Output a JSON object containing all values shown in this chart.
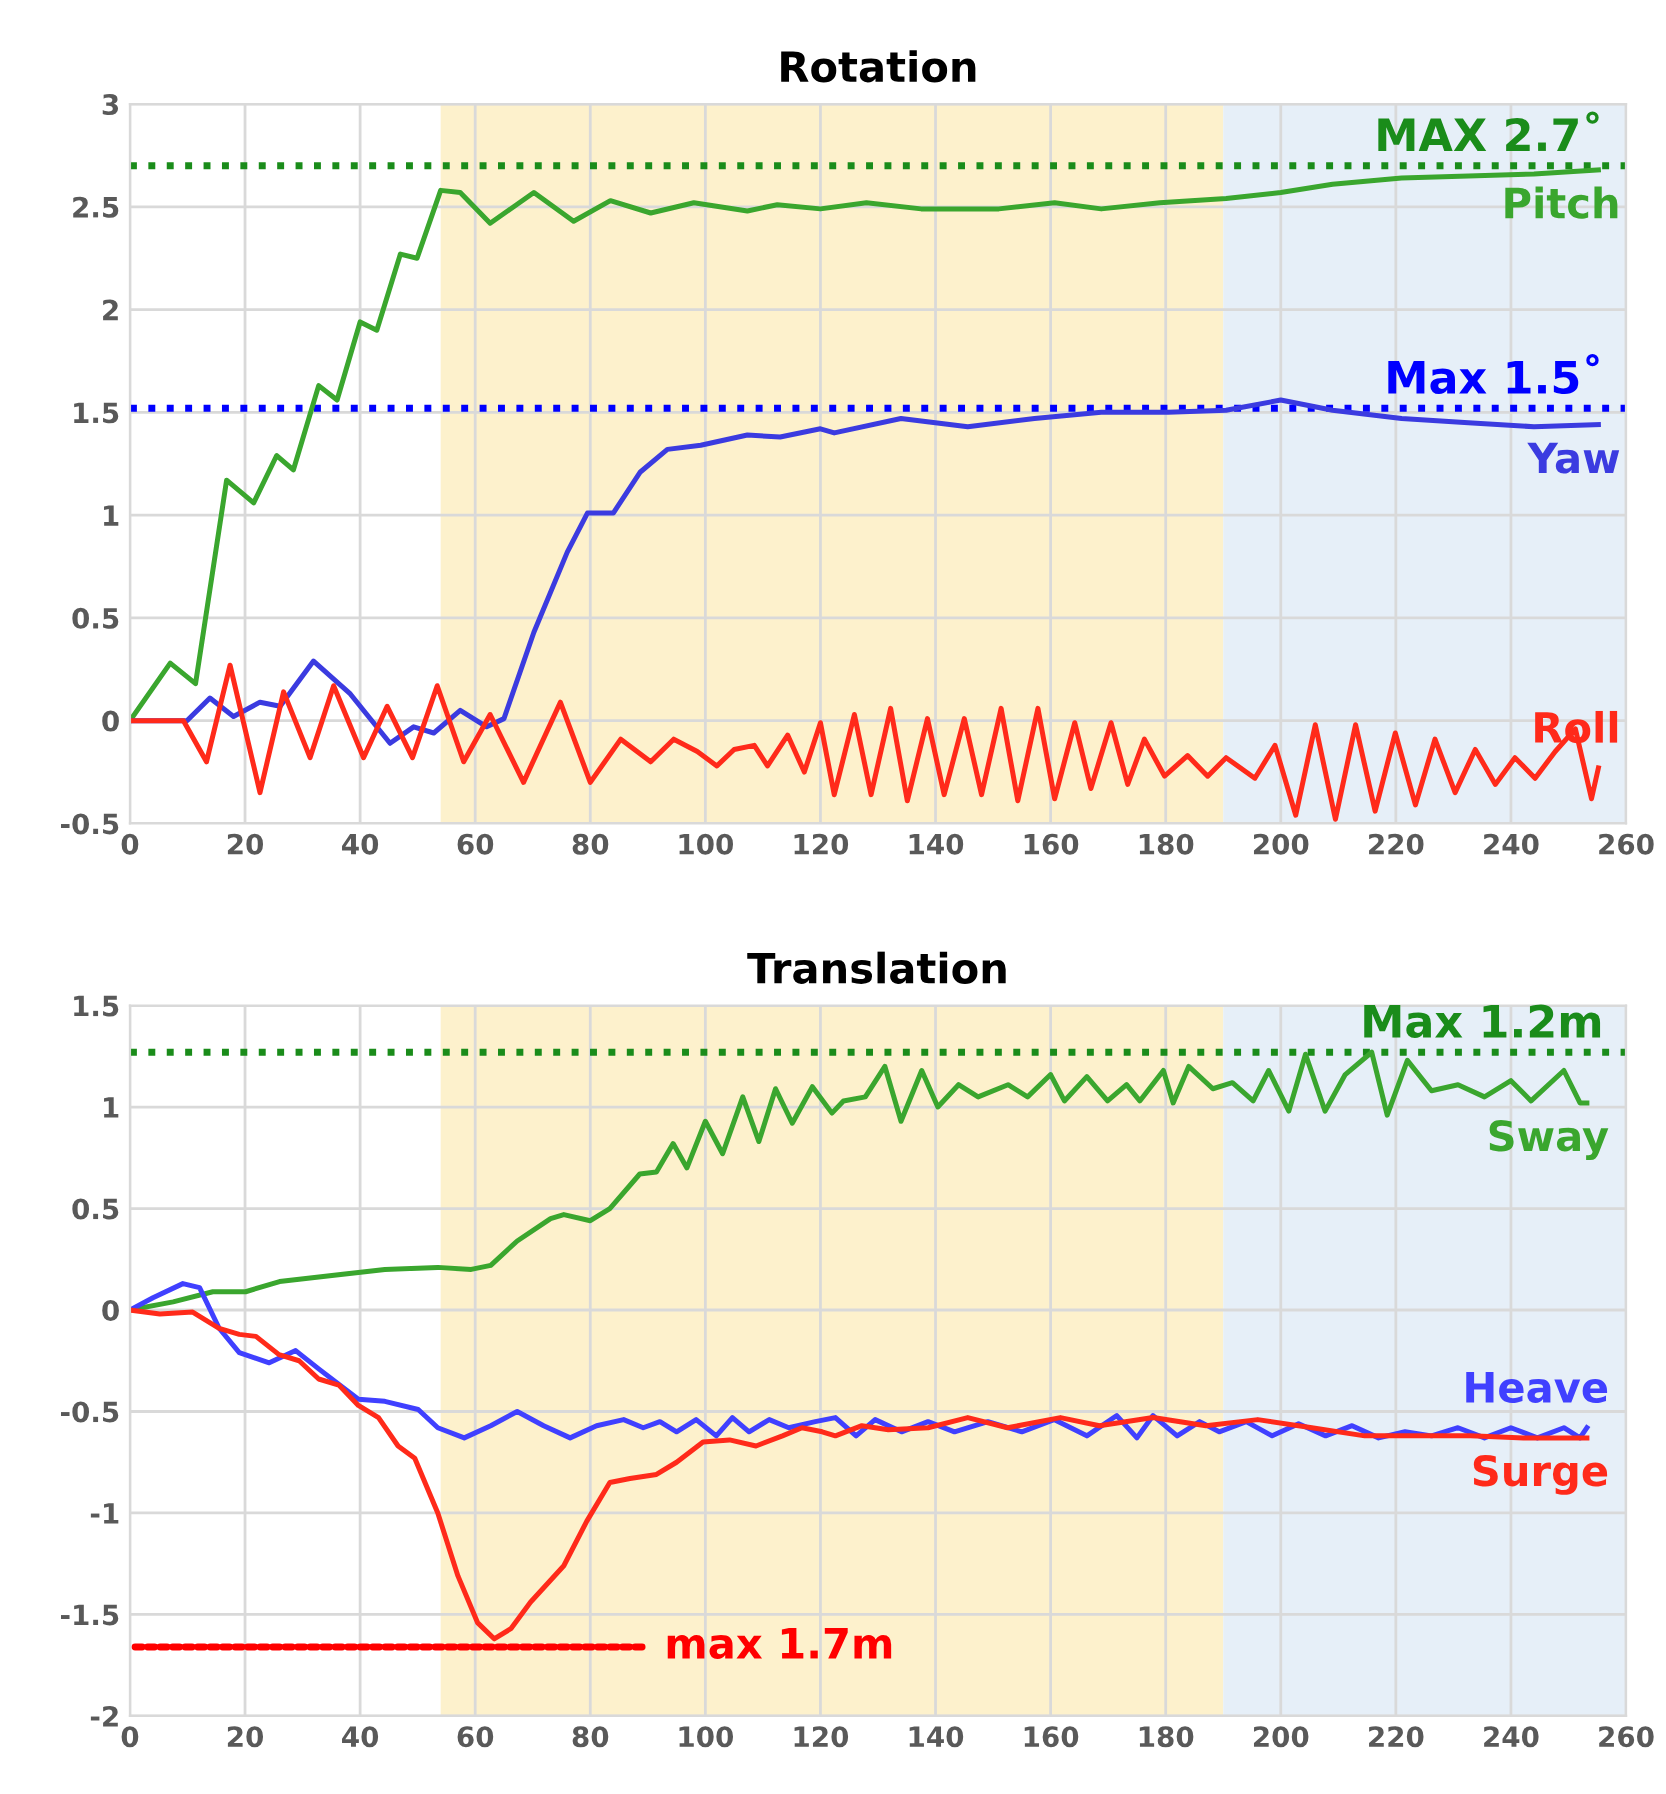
{
  "chart_data": [
    {
      "type": "line",
      "title": "Rotation",
      "xlim": [
        0,
        260
      ],
      "xticks": [
        0,
        20,
        40,
        60,
        80,
        100,
        120,
        140,
        160,
        180,
        200,
        220,
        240,
        260
      ],
      "ylim": [
        -0.5,
        3
      ],
      "yticks": [
        -0.5,
        0,
        0.5,
        1,
        1.5,
        2,
        2.5,
        3
      ],
      "grid": true,
      "bands": [
        {
          "axis": "x",
          "from": 54,
          "to": 190,
          "color": "#fdf1cc"
        },
        {
          "axis": "x",
          "from": 190,
          "to": 260,
          "color": "#e6eff8"
        }
      ],
      "ref_lines": [
        {
          "axis": "y",
          "value": 2.7,
          "label": "MAX 2.7˚",
          "color": "#1a8c1a",
          "line_style": "dotted"
        },
        {
          "axis": "y",
          "value": 1.52,
          "label": "Max 1.5˚",
          "color": "#0000ff",
          "line_style": "dotted"
        }
      ],
      "series": [
        {
          "name": "Pitch",
          "color": "#3aa62e",
          "x": [
            0,
            7,
            11.4,
            16.8,
            21.5,
            25.5,
            28.4,
            32.8,
            36,
            40,
            42.9,
            47,
            49.9,
            54,
            57.4,
            62.6,
            70.2,
            77.1,
            83.5,
            90.5,
            98,
            107.3,
            112.5,
            120,
            128,
            137.5,
            151,
            160.7,
            168.8,
            179,
            190.5,
            200,
            209,
            221,
            232.6,
            244,
            255.2
          ],
          "values": [
            0,
            0.28,
            0.18,
            1.17,
            1.06,
            1.29,
            1.22,
            1.63,
            1.56,
            1.94,
            1.9,
            2.27,
            2.25,
            2.58,
            2.57,
            2.42,
            2.57,
            2.43,
            2.53,
            2.47,
            2.52,
            2.48,
            2.51,
            2.49,
            2.52,
            2.49,
            2.49,
            2.52,
            2.49,
            2.52,
            2.54,
            2.57,
            2.61,
            2.64,
            2.65,
            2.66,
            2.68
          ]
        },
        {
          "name": "Yaw",
          "color": "#3b3be0",
          "x": [
            0,
            9.9,
            13.9,
            18,
            22.6,
            26.1,
            31.9,
            38.3,
            45.2,
            49.3,
            52.8,
            57.4,
            62,
            65,
            70.2,
            76,
            79.5,
            84,
            88.7,
            93.4,
            99.2,
            107.3,
            113,
            120,
            122.4,
            134,
            145.6,
            157.2,
            168.8,
            180.4,
            190.5,
            200,
            209,
            221,
            232.6,
            244,
            255.2
          ],
          "values": [
            0,
            0,
            0.11,
            0.02,
            0.09,
            0.07,
            0.29,
            0.13,
            -0.11,
            -0.03,
            -0.06,
            0.05,
            -0.03,
            0.01,
            0.43,
            0.82,
            1.01,
            1.01,
            1.21,
            1.32,
            1.34,
            1.39,
            1.38,
            1.42,
            1.4,
            1.47,
            1.43,
            1.47,
            1.5,
            1.5,
            1.51,
            1.56,
            1.51,
            1.47,
            1.45,
            1.43,
            1.44
          ]
        },
        {
          "name": "Roll",
          "color": "#ff2a1a",
          "x": [
            0,
            9.3,
            13.3,
            17.4,
            22.6,
            26.7,
            31.3,
            35.4,
            40.6,
            44.7,
            49.1,
            53.4,
            58,
            62.6,
            68.4,
            74.8,
            80,
            85.3,
            90.5,
            94.5,
            98.6,
            102,
            105,
            108.5,
            110.8,
            114.3,
            117.2,
            120,
            122.4,
            125.9,
            128.8,
            132.2,
            135.1,
            138.6,
            141.5,
            145,
            148,
            151.4,
            154.3,
            157.8,
            160.7,
            164.2,
            167,
            170.5,
            173.4,
            176.3,
            179.8,
            183.8,
            187.3,
            190.5,
            195.5,
            199,
            202.6,
            206,
            209.5,
            213,
            216.4,
            219.9,
            223.4,
            226.8,
            230.3,
            233.8,
            237.3,
            240.7,
            244.2,
            247.7,
            251.2,
            254,
            255.2
          ],
          "values": [
            0,
            0,
            -0.2,
            0.27,
            -0.35,
            0.14,
            -0.18,
            0.17,
            -0.18,
            0.07,
            -0.18,
            0.17,
            -0.2,
            0.03,
            -0.3,
            0.09,
            -0.3,
            -0.09,
            -0.2,
            -0.09,
            -0.15,
            -0.22,
            -0.14,
            -0.12,
            -0.22,
            -0.07,
            -0.25,
            -0.01,
            -0.36,
            0.03,
            -0.36,
            0.06,
            -0.39,
            0.01,
            -0.36,
            0.01,
            -0.36,
            0.06,
            -0.39,
            0.06,
            -0.38,
            -0.01,
            -0.33,
            -0.01,
            -0.31,
            -0.09,
            -0.27,
            -0.17,
            -0.27,
            -0.18,
            -0.28,
            -0.12,
            -0.46,
            -0.02,
            -0.48,
            -0.02,
            -0.44,
            -0.06,
            -0.41,
            -0.09,
            -0.35,
            -0.14,
            -0.31,
            -0.18,
            -0.28,
            -0.15,
            -0.04,
            -0.38,
            -0.23
          ]
        }
      ]
    },
    {
      "type": "line",
      "title": "Translation",
      "xlim": [
        0,
        260
      ],
      "xticks": [
        0,
        20,
        40,
        60,
        80,
        100,
        120,
        140,
        160,
        180,
        200,
        220,
        240,
        260
      ],
      "ylim": [
        -2,
        1.5
      ],
      "yticks": [
        -2,
        -1.5,
        -1,
        -0.5,
        0,
        0.5,
        1,
        1.5
      ],
      "grid": true,
      "bands": [
        {
          "axis": "x",
          "from": 54,
          "to": 190,
          "color": "#fdf1cc"
        },
        {
          "axis": "x",
          "from": 190,
          "to": 260,
          "color": "#e6eff8"
        }
      ],
      "ref_lines": [
        {
          "axis": "y",
          "value": 1.27,
          "label": "Max 1.2m",
          "color": "#1a8c1a",
          "line_style": "dotted"
        }
      ],
      "series": [
        {
          "name": "Sway",
          "color": "#3aa62e",
          "x": [
            0,
            7.5,
            14.4,
            20.1,
            26,
            35.1,
            44.3,
            53.5,
            59.3,
            62.7,
            67.3,
            73.1,
            75.4,
            80,
            83.4,
            88.6,
            91.5,
            94.4,
            96.8,
            100,
            103,
            106.5,
            109.3,
            112.2,
            115.1,
            118.6,
            122,
            124,
            127.8,
            131.2,
            134,
            137.6,
            140.4,
            144,
            147.4,
            152.6,
            156,
            160,
            162.4,
            166.3,
            169.9,
            173.2,
            175.5,
            179.6,
            181.3,
            184,
            188.2,
            191.6,
            195.2,
            197.9,
            201.4,
            204.3,
            207.7,
            211.2,
            215.8,
            218.5,
            222,
            226.2,
            230.8,
            235.4,
            240,
            243.5,
            249.2,
            252,
            253.2
          ],
          "values": [
            0,
            0.04,
            0.09,
            0.09,
            0.14,
            0.17,
            0.2,
            0.21,
            0.2,
            0.22,
            0.34,
            0.45,
            0.47,
            0.44,
            0.5,
            0.67,
            0.68,
            0.82,
            0.7,
            0.93,
            0.77,
            1.05,
            0.83,
            1.09,
            0.92,
            1.1,
            0.97,
            1.03,
            1.05,
            1.2,
            0.93,
            1.18,
            1.0,
            1.11,
            1.05,
            1.11,
            1.05,
            1.16,
            1.03,
            1.15,
            1.03,
            1.11,
            1.03,
            1.18,
            1.02,
            1.2,
            1.09,
            1.12,
            1.03,
            1.18,
            0.98,
            1.26,
            0.98,
            1.16,
            1.27,
            0.96,
            1.23,
            1.08,
            1.11,
            1.05,
            1.13,
            1.03,
            1.18,
            1.02,
            1.02
          ]
        },
        {
          "name": "Heave",
          "color": "#4040ff",
          "x": [
            0,
            4,
            9.2,
            12.1,
            15.5,
            19,
            24.2,
            28.8,
            32.8,
            39.7,
            44.3,
            50.1,
            53.5,
            58.1,
            62.7,
            67.3,
            71.9,
            76.5,
            81.1,
            85.8,
            89.2,
            92.1,
            95,
            98.4,
            101.9,
            104.7,
            107.6,
            111.1,
            114.5,
            119.1,
            122.6,
            126.2,
            129.5,
            134.1,
            138.7,
            143.3,
            149.1,
            155,
            160.6,
            166.3,
            171.5,
            175,
            177.8,
            182,
            185.9,
            189.3,
            194,
            198.5,
            203.1,
            207.8,
            212.4,
            217,
            221.6,
            226.2,
            230.8,
            235.4,
            240,
            244.6,
            249.2,
            252,
            253.2
          ],
          "values": [
            0,
            0.06,
            0.13,
            0.11,
            -0.09,
            -0.21,
            -0.26,
            -0.2,
            -0.29,
            -0.44,
            -0.45,
            -0.49,
            -0.58,
            -0.63,
            -0.57,
            -0.5,
            -0.57,
            -0.63,
            -0.57,
            -0.54,
            -0.58,
            -0.55,
            -0.6,
            -0.54,
            -0.62,
            -0.53,
            -0.6,
            -0.54,
            -0.58,
            -0.55,
            -0.53,
            -0.62,
            -0.54,
            -0.6,
            -0.55,
            -0.6,
            -0.55,
            -0.6,
            -0.54,
            -0.62,
            -0.52,
            -0.63,
            -0.52,
            -0.62,
            -0.55,
            -0.6,
            -0.55,
            -0.62,
            -0.56,
            -0.62,
            -0.57,
            -0.63,
            -0.6,
            -0.62,
            -0.58,
            -0.63,
            -0.58,
            -0.63,
            -0.58,
            -0.63,
            -0.58
          ]
        },
        {
          "name": "Surge",
          "color": "#ff2a1a",
          "x": [
            0,
            5.2,
            10.9,
            15.5,
            19,
            21.9,
            25.9,
            29.4,
            32.8,
            36.3,
            39.7,
            43.2,
            46.6,
            49.5,
            53.5,
            57,
            60.4,
            63.3,
            66.2,
            69.6,
            75.4,
            79.4,
            83.4,
            86.9,
            91.5,
            95,
            99.6,
            104.2,
            108.8,
            113.4,
            116.8,
            120.3,
            122.6,
            127.2,
            131.8,
            138.7,
            145.6,
            152.5,
            161.7,
            168.5,
            177.8,
            187,
            196,
            205.4,
            214.6,
            223.8,
            233,
            242.2,
            253.2
          ],
          "values": [
            0,
            -0.02,
            -0.01,
            -0.09,
            -0.12,
            -0.13,
            -0.22,
            -0.25,
            -0.34,
            -0.37,
            -0.47,
            -0.53,
            -0.67,
            -0.73,
            -1.0,
            -1.31,
            -1.54,
            -1.62,
            -1.57,
            -1.44,
            -1.26,
            -1.04,
            -0.85,
            -0.83,
            -0.81,
            -0.75,
            -0.65,
            -0.64,
            -0.67,
            -0.62,
            -0.58,
            -0.6,
            -0.62,
            -0.57,
            -0.59,
            -0.58,
            -0.53,
            -0.58,
            -0.53,
            -0.57,
            -0.53,
            -0.57,
            -0.54,
            -0.58,
            -0.62,
            -0.62,
            -0.62,
            -0.63,
            -0.63
          ]
        },
        {
          "name": "max 1.7m",
          "type": "line",
          "color": "#ff0000",
          "line_style": "dotted",
          "x": [
            0,
            89
          ],
          "values": [
            -1.66,
            -1.66
          ]
        }
      ]
    }
  ]
}
